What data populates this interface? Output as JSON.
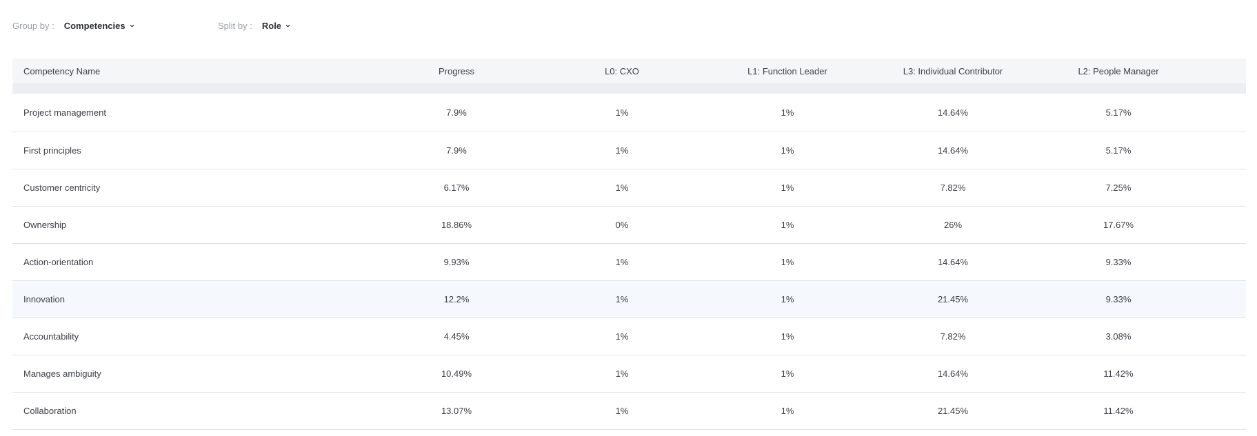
{
  "toolbar": {
    "group_by_label": "Group by :",
    "group_by_value": "Competencies",
    "split_by_label": "Split by :",
    "split_by_value": "Role"
  },
  "table": {
    "headers": [
      "Competency Name",
      "Progress",
      "L0: CXO",
      "L1: Function Leader",
      "L3: Individual Contributor",
      "L2: People Manager"
    ],
    "rows": [
      [
        "Project management",
        "7.9%",
        "1%",
        "1%",
        "14.64%",
        "5.17%"
      ],
      [
        "First principles",
        "7.9%",
        "1%",
        "1%",
        "14.64%",
        "5.17%"
      ],
      [
        "Customer centricity",
        "6.17%",
        "1%",
        "1%",
        "7.82%",
        "7.25%"
      ],
      [
        "Ownership",
        "18.86%",
        "0%",
        "1%",
        "26%",
        "17.67%"
      ],
      [
        "Action-orientation",
        "9.93%",
        "1%",
        "1%",
        "14.64%",
        "9.33%"
      ],
      [
        "Innovation",
        "12.2%",
        "1%",
        "1%",
        "21.45%",
        "9.33%"
      ],
      [
        "Accountability",
        "4.45%",
        "1%",
        "1%",
        "7.82%",
        "3.08%"
      ],
      [
        "Manages ambiguity",
        "10.49%",
        "1%",
        "1%",
        "14.64%",
        "11.42%"
      ],
      [
        "Collaboration",
        "13.07%",
        "1%",
        "1%",
        "21.45%",
        "11.42%"
      ]
    ],
    "highlighted_row": "Innovation"
  }
}
